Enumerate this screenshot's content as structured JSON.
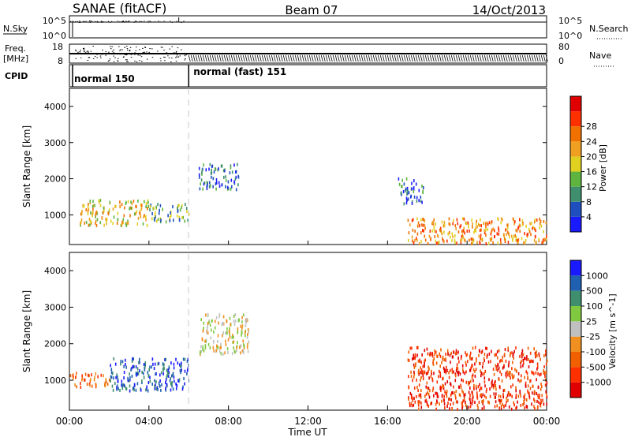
{
  "header": {
    "station": "SANAE (fitACF)",
    "beam": "Beam 07",
    "date": "14/Oct/2013"
  },
  "nsky_panel": {
    "left_label": "N.Sky",
    "left_ticks": [
      "10^5",
      "10^0"
    ],
    "right_ticks": [
      "10^5",
      "10^0"
    ],
    "right_label": "N.Search"
  },
  "freq_panel": {
    "label_top": "Freq.",
    "label_unit": "[MHz]",
    "left_ticks": [
      "18",
      "8"
    ],
    "right_ticks": [
      "80",
      "0"
    ],
    "right_label": "Nave"
  },
  "cpid_panel": {
    "label": "CPID",
    "modes": [
      {
        "name": "normal 150",
        "start_hour": 0
      },
      {
        "name": "normal (fast) 151",
        "start_hour": 6
      }
    ]
  },
  "colors": {
    "power": [
      "#1a1aff",
      "#1f4fbf",
      "#3f8f6f",
      "#5fb43f",
      "#e0d020",
      "#f0a020",
      "#f07000",
      "#ff3000",
      "#e00000"
    ],
    "velocity": [
      "#e00000",
      "#ff3000",
      "#f06000",
      "#f09020",
      "#c0c0c0",
      "#80c840",
      "#3f8f6f",
      "#2060b0",
      "#1a1aff"
    ]
  },
  "chart_data": [
    {
      "type": "heatmap",
      "name": "power",
      "ylabel": "Slant Range [km]",
      "x_range_hours": [
        0,
        24
      ],
      "ylim": [
        180,
        4500
      ],
      "y_ticks": [
        1000,
        2000,
        3000,
        4000
      ],
      "colorbar_label": "Power [dB]",
      "colorbar_ticks": [
        "4",
        "8",
        "12",
        "16",
        "20",
        "24",
        "28"
      ],
      "regions": [
        {
          "x": [
            0.5,
            4.0
          ],
          "y": [
            700,
            1400
          ],
          "level": "12-24"
        },
        {
          "x": [
            4.0,
            6.0
          ],
          "y": [
            800,
            1300
          ],
          "level": "8-20"
        },
        {
          "x": [
            6.5,
            8.5
          ],
          "y": [
            1700,
            2400
          ],
          "level": "4-16"
        },
        {
          "x": [
            16.5,
            17.8
          ],
          "y": [
            1300,
            2000
          ],
          "level": "4-16"
        },
        {
          "x": [
            17.0,
            24.0
          ],
          "y": [
            200,
            900
          ],
          "level": "8-28"
        }
      ]
    },
    {
      "type": "heatmap",
      "name": "velocity",
      "ylabel": "Slant Range [km]",
      "x_range_hours": [
        0,
        24
      ],
      "ylim": [
        180,
        4500
      ],
      "y_ticks": [
        1000,
        2000,
        3000,
        4000
      ],
      "colorbar_label": "Velocity [m s^-1]",
      "colorbar_ticks": [
        "-1000",
        "-500",
        "-100",
        "-25",
        "25",
        "100",
        "500",
        "1000"
      ],
      "regions": [
        {
          "x": [
            0.0,
            2.0
          ],
          "y": [
            800,
            1200
          ],
          "level": "-500 to -100"
        },
        {
          "x": [
            2.0,
            6.0
          ],
          "y": [
            700,
            1600
          ],
          "level": "100 to 1000"
        },
        {
          "x": [
            6.5,
            9.0
          ],
          "y": [
            1700,
            2800
          ],
          "level": "-500 to 100"
        },
        {
          "x": [
            17.0,
            24.0
          ],
          "y": [
            200,
            1900
          ],
          "level": "-1000 to -100"
        }
      ]
    }
  ],
  "x_axis": {
    "ticks": [
      "00:00",
      "04:00",
      "08:00",
      "12:00",
      "16:00",
      "20:00",
      "00:00"
    ],
    "label": "Time UT"
  }
}
